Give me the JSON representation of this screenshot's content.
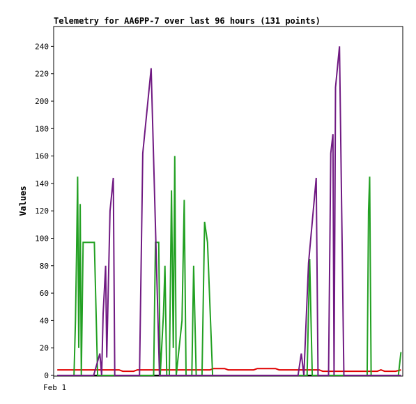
{
  "chart_data": {
    "type": "line",
    "title": "Telemetry for AA6PP-7 over last 96 hours (131 points)",
    "xlabel": "",
    "ylabel": "Values",
    "x_tick_labels": [
      "Feb 1"
    ],
    "xlim": [
      0,
      96
    ],
    "ylim": [
      0,
      255
    ],
    "yticks": [
      0,
      20,
      40,
      60,
      80,
      100,
      120,
      140,
      160,
      180,
      200,
      220,
      240
    ],
    "grid": false,
    "legend": "none",
    "series": [
      {
        "color": "#000000",
        "points": [
          [
            1,
            0
          ],
          [
            95.5,
            0
          ]
        ]
      },
      {
        "color": "#e00000",
        "points": [
          [
            1,
            4
          ],
          [
            18,
            4
          ],
          [
            19,
            3
          ],
          [
            22,
            3
          ],
          [
            23,
            4
          ],
          [
            43,
            4
          ],
          [
            44,
            5
          ],
          [
            47,
            5
          ],
          [
            48,
            4
          ],
          [
            55,
            4
          ],
          [
            56,
            5
          ],
          [
            61,
            5
          ],
          [
            62,
            4
          ],
          [
            73,
            4
          ],
          [
            74,
            3
          ],
          [
            89,
            3
          ],
          [
            90,
            4
          ],
          [
            91,
            3
          ],
          [
            94,
            3
          ],
          [
            95.5,
            4
          ]
        ]
      },
      {
        "color": "#22a022",
        "points": [
          [
            1,
            0
          ],
          [
            5.6,
            0
          ],
          [
            6,
            40
          ],
          [
            6.3,
            90
          ],
          [
            6.6,
            145
          ],
          [
            6.9,
            20
          ],
          [
            7.3,
            125
          ],
          [
            7.6,
            0
          ],
          [
            8.1,
            97
          ],
          [
            11.2,
            97
          ],
          [
            12.1,
            0
          ],
          [
            27.5,
            0
          ],
          [
            28,
            97
          ],
          [
            28.9,
            97
          ],
          [
            29.3,
            0
          ],
          [
            30.2,
            45
          ],
          [
            30.6,
            80
          ],
          [
            31.1,
            0
          ],
          [
            31.8,
            0
          ],
          [
            32.4,
            135
          ],
          [
            32.9,
            20
          ],
          [
            33.3,
            160
          ],
          [
            33.7,
            0
          ],
          [
            35.3,
            40
          ],
          [
            35.9,
            128
          ],
          [
            36.4,
            0
          ],
          [
            38,
            0
          ],
          [
            38.5,
            80
          ],
          [
            39.2,
            0
          ],
          [
            40.8,
            0
          ],
          [
            41.5,
            112
          ],
          [
            42.3,
            97
          ],
          [
            43.7,
            0
          ],
          [
            69.7,
            0
          ],
          [
            70.4,
            85
          ],
          [
            71.1,
            0
          ],
          [
            86.2,
            0
          ],
          [
            86.6,
            120
          ],
          [
            86.9,
            145
          ],
          [
            87.3,
            0
          ],
          [
            94.8,
            0
          ],
          [
            95.5,
            17
          ]
        ]
      },
      {
        "color": "#701a82",
        "points": [
          [
            1,
            0
          ],
          [
            11,
            0
          ],
          [
            12.7,
            16
          ],
          [
            13.2,
            0
          ],
          [
            13.6,
            45
          ],
          [
            14.3,
            80
          ],
          [
            14.6,
            13
          ],
          [
            15.5,
            120
          ],
          [
            16.4,
            144
          ],
          [
            16.8,
            0
          ],
          [
            23.6,
            0
          ],
          [
            24.5,
            162
          ],
          [
            26.8,
            224
          ],
          [
            29.1,
            0
          ],
          [
            67.2,
            0
          ],
          [
            68.1,
            16
          ],
          [
            68.8,
            0
          ],
          [
            70.1,
            82
          ],
          [
            72.2,
            144
          ],
          [
            72.7,
            0
          ],
          [
            75.6,
            0
          ],
          [
            76.2,
            162
          ],
          [
            76.8,
            176
          ],
          [
            77.1,
            0
          ],
          [
            77.5,
            210
          ],
          [
            78.6,
            240
          ],
          [
            79.8,
            0
          ],
          [
            95.5,
            0
          ]
        ]
      }
    ]
  }
}
